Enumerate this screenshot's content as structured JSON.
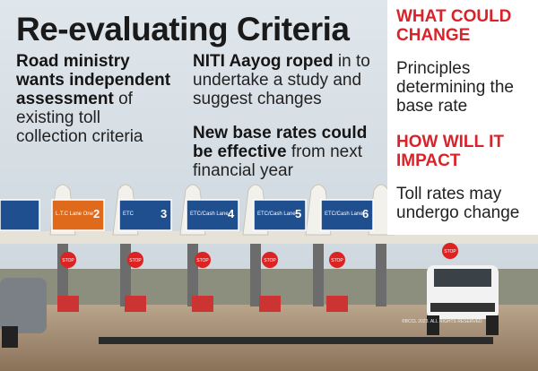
{
  "headline": {
    "title": "Re-evaluating Criteria"
  },
  "points": [
    {
      "bold": "Road ministry wants independent assessment",
      "rest": " of existing toll collection criteria"
    },
    {
      "bold": "NITI Aayog roped",
      "rest": " in to undertake a study and suggest changes"
    },
    {
      "bold": "New base rates could be effective",
      "rest": " from next financial year"
    }
  ],
  "panel": {
    "sections": [
      {
        "heading": "WHAT COULD CHANGE",
        "text": "Principles determining the base rate"
      },
      {
        "heading": "HOW WILL IT IMPACT",
        "text": "Toll rates may undergo change"
      }
    ]
  },
  "photo": {
    "signs": [
      {
        "number": "2",
        "label": "L.T.C Lane One"
      },
      {
        "number": "3",
        "label": "ETC"
      },
      {
        "number": "4",
        "label": "ETC/Cash Lane"
      },
      {
        "number": "5",
        "label": "ETC/Cash Lane"
      },
      {
        "number": "6",
        "label": "ETC/Cash Lane"
      }
    ],
    "stop": "STOP",
    "credit": "©BCCL 2023. ALL RIGHTS RESERVED"
  }
}
